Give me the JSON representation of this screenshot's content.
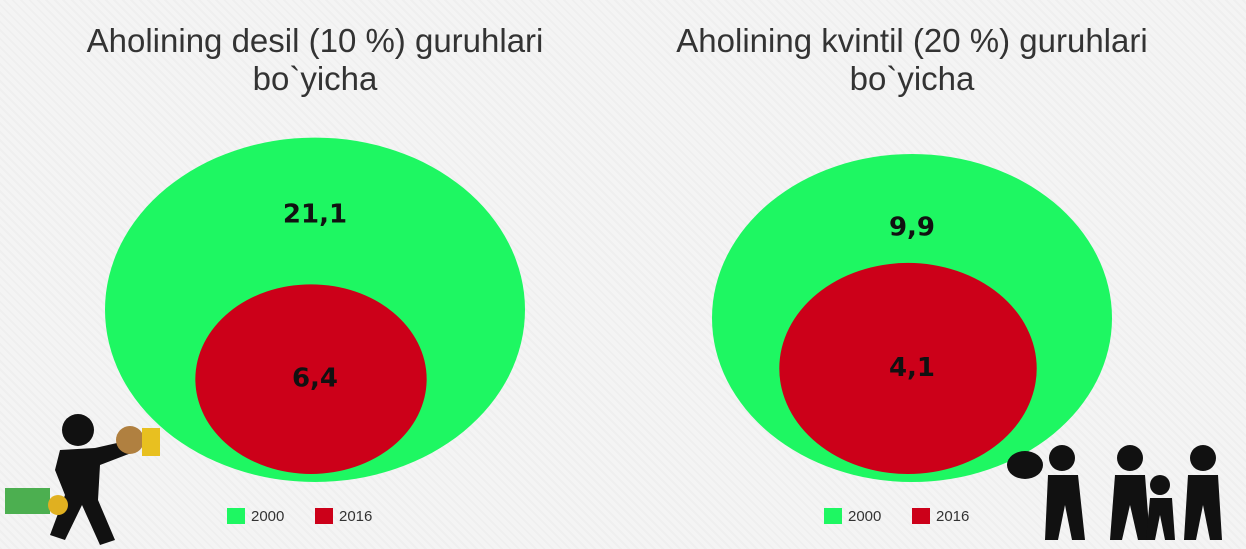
{
  "chart_data": [
    {
      "type": "circles",
      "title": "Aholining desil (10 %) guruhlari bo`yicha",
      "categories": [
        "2000",
        "2016"
      ],
      "values": [
        21.1,
        6.4
      ],
      "value_labels": [
        "21,1",
        "6,4"
      ],
      "colors": [
        "#1ef762",
        "#cc0019"
      ],
      "legend": "bottom"
    },
    {
      "type": "circles",
      "title": "Aholining kvintil (20 %) guruhlari bo`yicha",
      "categories": [
        "2000",
        "2016"
      ],
      "values": [
        9.9,
        4.1
      ],
      "value_labels": [
        "9,9",
        "4,1"
      ],
      "colors": [
        "#1ef762",
        "#cc0019"
      ],
      "legend": "bottom"
    }
  ]
}
